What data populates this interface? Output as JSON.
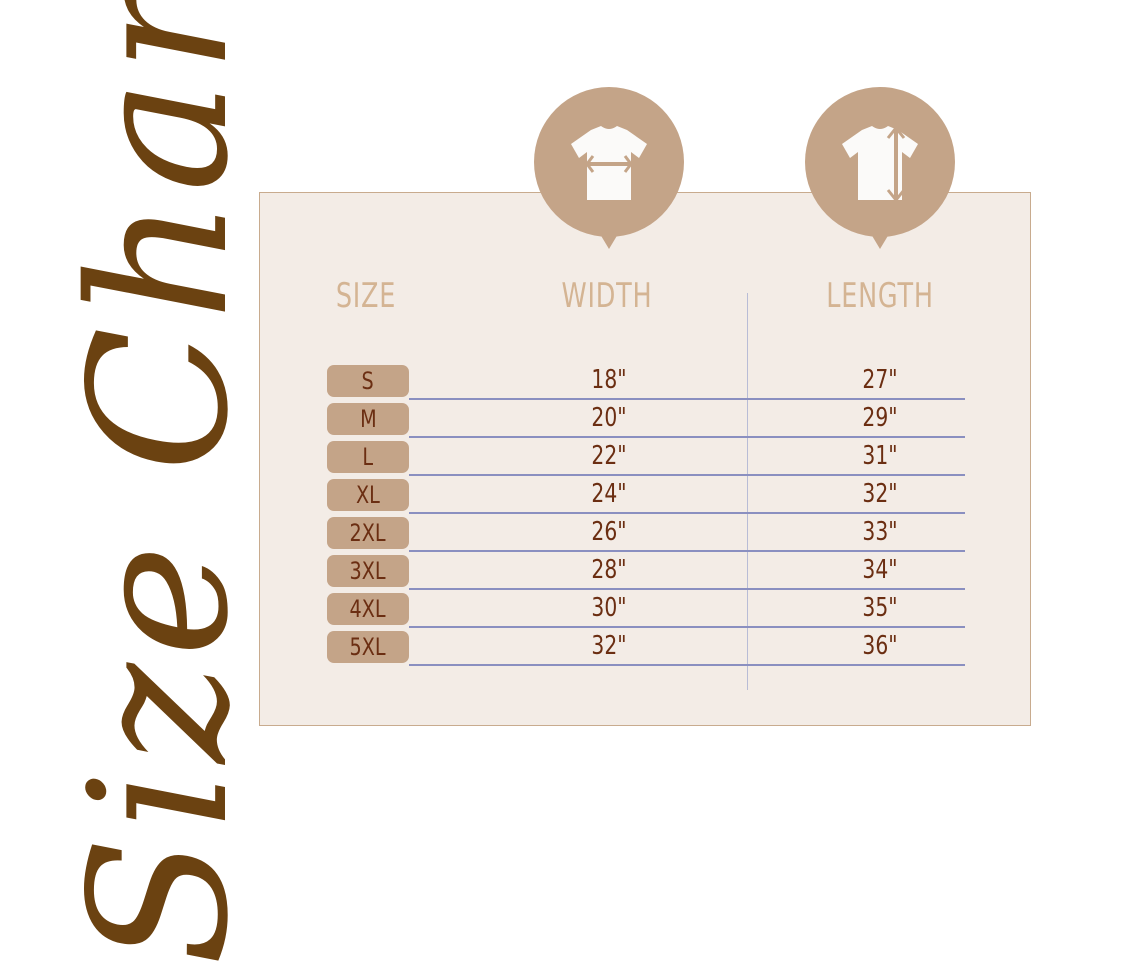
{
  "title": "Size Chart",
  "colors": {
    "title": "#6b4211",
    "panel": "#f3ece6",
    "accent": "#c4a488",
    "header": "#d4b493",
    "value": "#6b2e12",
    "rule": "#8a8fc0"
  },
  "icons": {
    "width": "tshirt-width-icon",
    "length": "tshirt-length-icon"
  },
  "headers": {
    "size": "SIZE",
    "width": "WIDTH",
    "length": "LENGTH"
  },
  "rows": [
    {
      "size": "S",
      "width": "18\"",
      "length": "27\""
    },
    {
      "size": "M",
      "width": "20\"",
      "length": "29\""
    },
    {
      "size": "L",
      "width": "22\"",
      "length": "31\""
    },
    {
      "size": "XL",
      "width": "24\"",
      "length": "32\""
    },
    {
      "size": "2XL",
      "width": "26\"",
      "length": "33\""
    },
    {
      "size": "3XL",
      "width": "28\"",
      "length": "34\""
    },
    {
      "size": "4XL",
      "width": "30\"",
      "length": "35\""
    },
    {
      "size": "5XL",
      "width": "32\"",
      "length": "36\""
    }
  ]
}
